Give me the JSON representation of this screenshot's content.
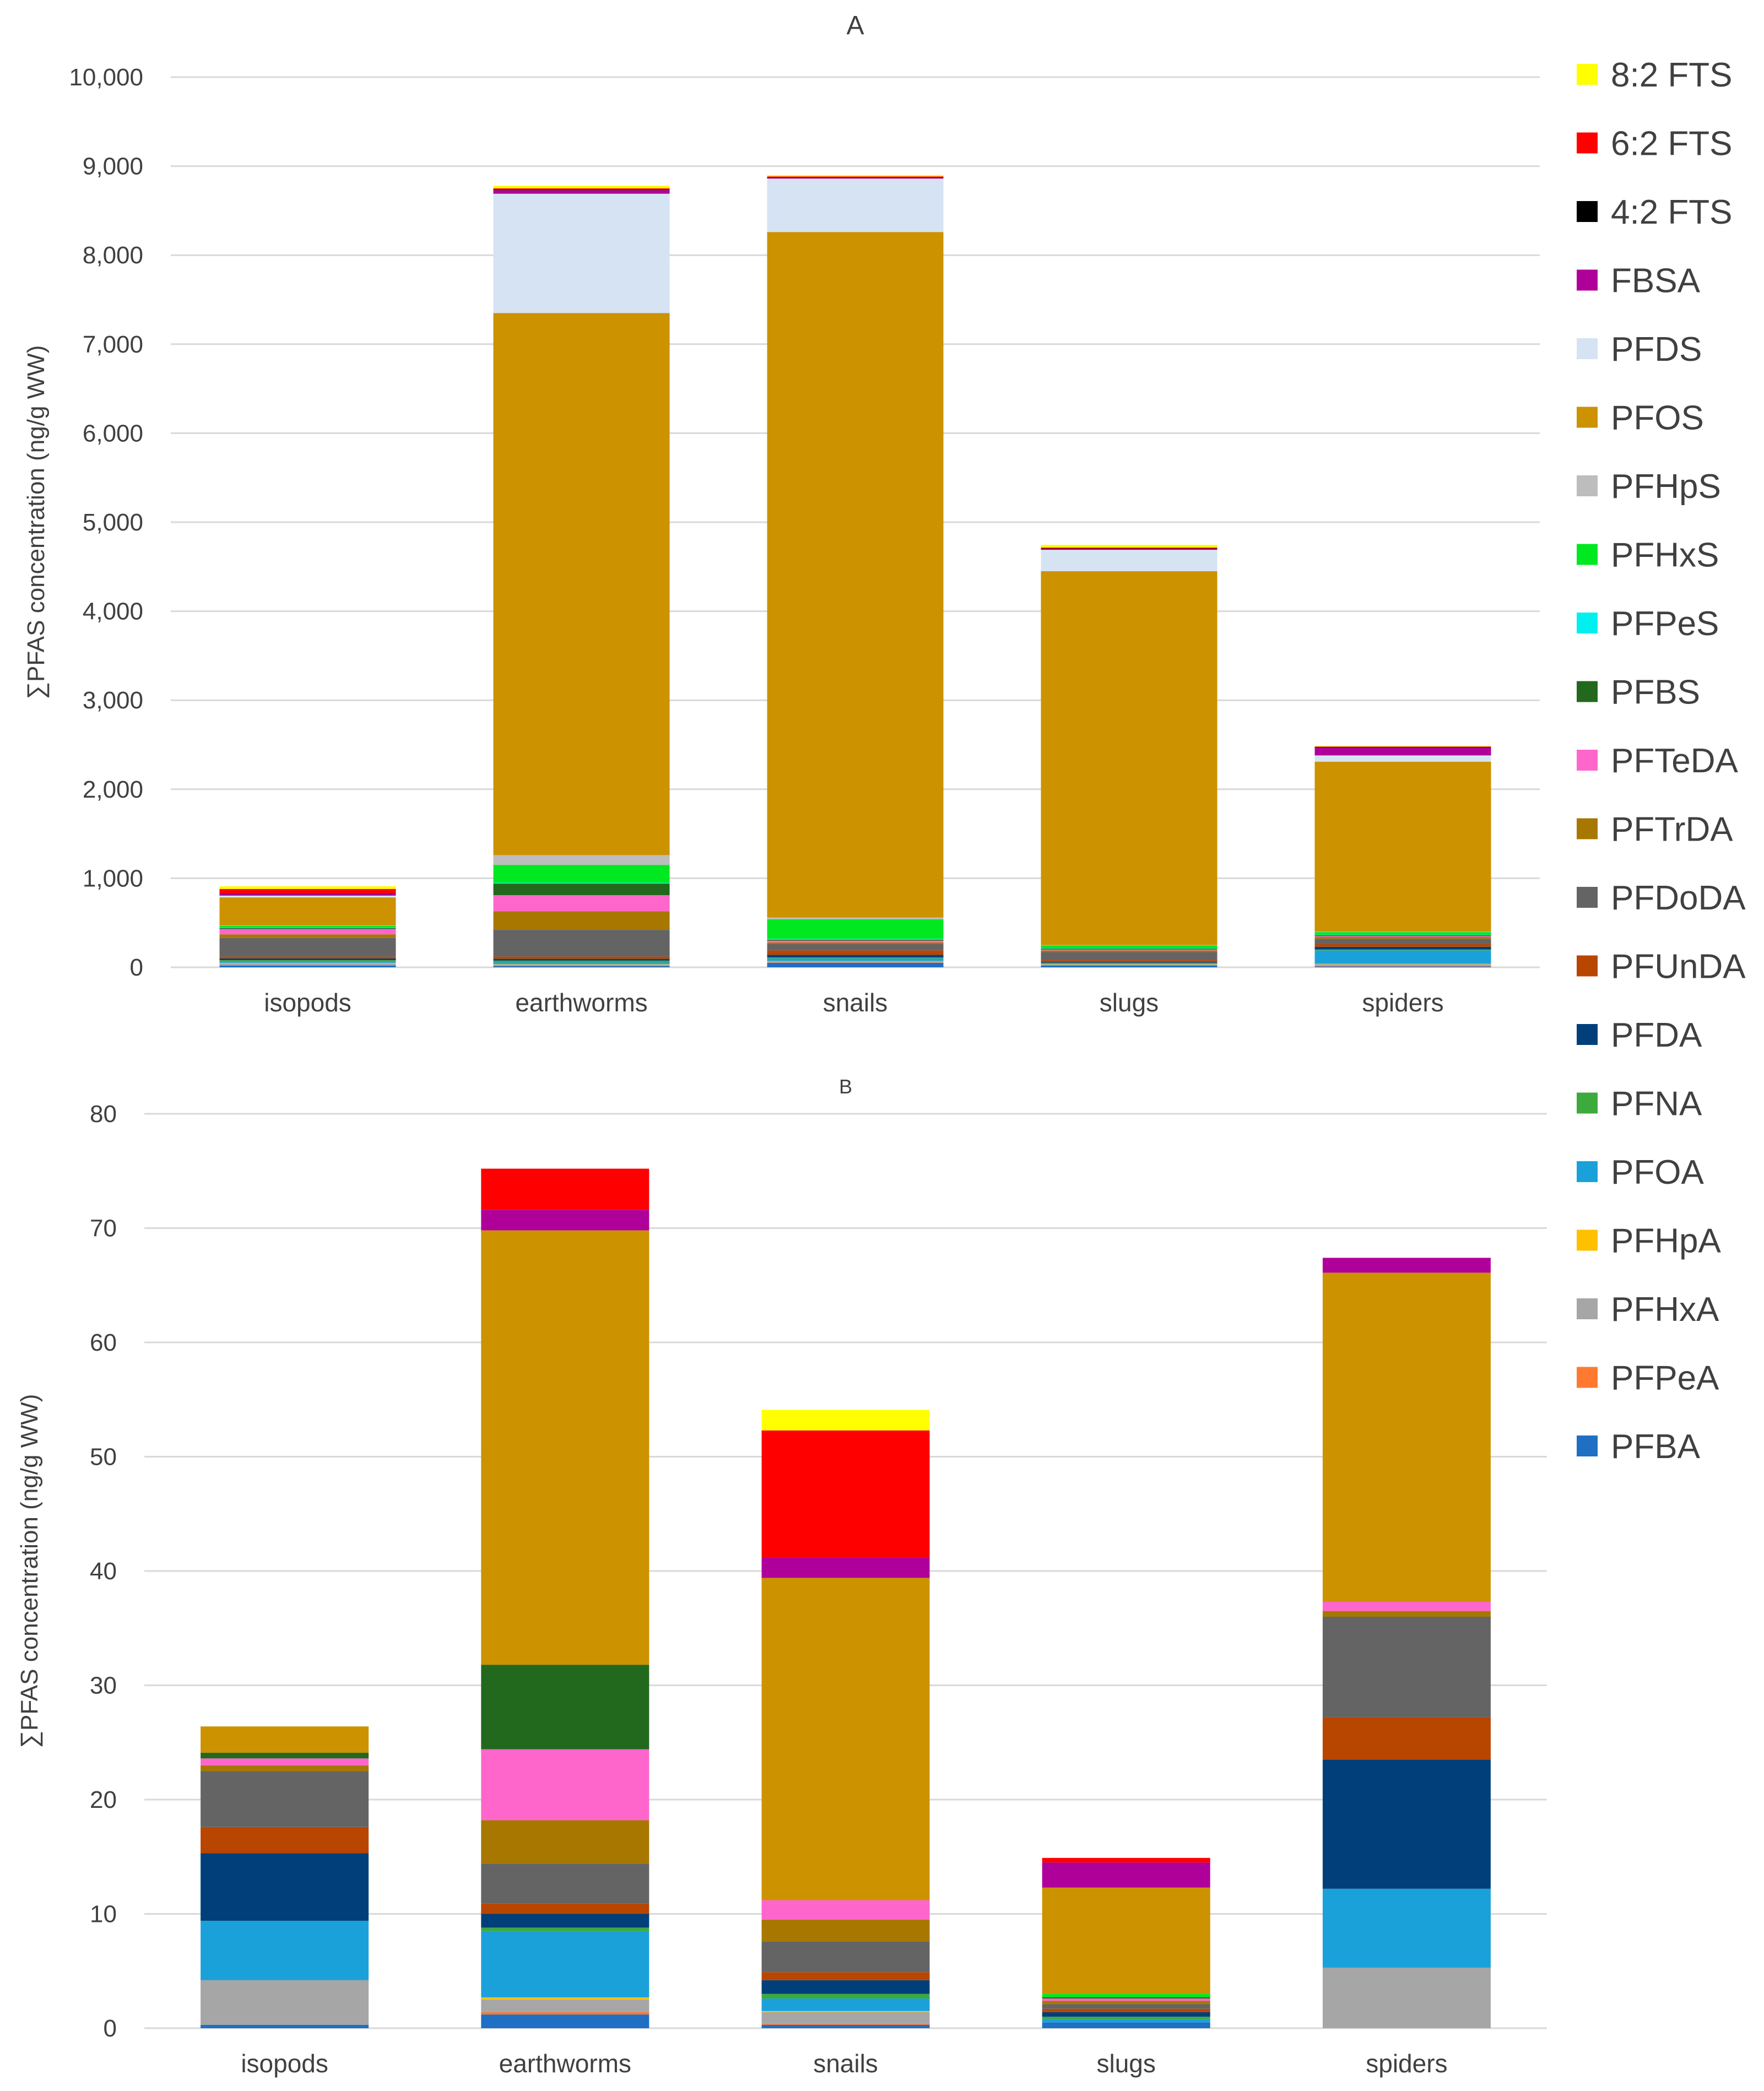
{
  "legend": {
    "position": "right",
    "items": [
      {
        "label": "8:2 FTS",
        "color": "#FFFF00"
      },
      {
        "label": "6:2 FTS",
        "color": "#FF0000"
      },
      {
        "label": "4:2 FTS",
        "color": "#000000"
      },
      {
        "label": "FBSA",
        "color": "#B0009A"
      },
      {
        "label": "PFDS",
        "color": "#D6E3F3"
      },
      {
        "label": "PFOS",
        "color": "#CC9200"
      },
      {
        "label": "PFHpS",
        "color": "#BDBDBD"
      },
      {
        "label": "PFHxS",
        "color": "#00E81F"
      },
      {
        "label": "PFPeS",
        "color": "#00F0F0"
      },
      {
        "label": "PFBS",
        "color": "#22691E"
      },
      {
        "label": "PFTeDA",
        "color": "#FF66CC"
      },
      {
        "label": "PFTrDA",
        "color": "#A77700"
      },
      {
        "label": "PFDoDA",
        "color": "#646464"
      },
      {
        "label": "PFUnDA",
        "color": "#B84500"
      },
      {
        "label": "PFDA",
        "color": "#003F7A"
      },
      {
        "label": "PFNA",
        "color": "#3DAA3D"
      },
      {
        "label": "PFOA",
        "color": "#1BA1DA"
      },
      {
        "label": "PFHpA",
        "color": "#FFC000"
      },
      {
        "label": "PFHxA",
        "color": "#A6A6A6"
      },
      {
        "label": "PFPeA",
        "color": "#FF7A30"
      },
      {
        "label": "PFBA",
        "color": "#1F6FC4"
      }
    ]
  },
  "chart_data": [
    {
      "type": "bar",
      "stacked": true,
      "title": "A",
      "xlabel": "",
      "ylabel": "∑PFAS concentration (ng/g WW)",
      "ylim": [
        0,
        10000
      ],
      "yticks": [
        0,
        1000,
        2000,
        3000,
        4000,
        5000,
        6000,
        7000,
        8000,
        9000,
        10000
      ],
      "ytick_labels": [
        "0",
        "1,000",
        "2,000",
        "3,000",
        "4,000",
        "5,000",
        "6,000",
        "7,000",
        "8,000",
        "9,000",
        "10,000"
      ],
      "grid": true,
      "categories": [
        "isopods",
        "earthworms",
        "snails",
        "slugs",
        "spiders"
      ],
      "series": [
        {
          "name": "PFBA",
          "values": [
            20,
            15,
            50,
            20,
            10
          ]
        },
        {
          "name": "PFPeA",
          "values": [
            5,
            5,
            5,
            5,
            5
          ]
        },
        {
          "name": "PFHxA",
          "values": [
            20,
            10,
            10,
            5,
            20
          ]
        },
        {
          "name": "PFHpA",
          "values": [
            5,
            5,
            5,
            5,
            5
          ]
        },
        {
          "name": "PFOA",
          "values": [
            20,
            20,
            30,
            10,
            150
          ]
        },
        {
          "name": "PFNA",
          "values": [
            10,
            20,
            10,
            5,
            10
          ]
        },
        {
          "name": "PFDA",
          "values": [
            20,
            20,
            30,
            10,
            30
          ]
        },
        {
          "name": "PFUnDA",
          "values": [
            20,
            25,
            50,
            20,
            30
          ]
        },
        {
          "name": "PFDoDA",
          "values": [
            210,
            300,
            70,
            90,
            60
          ]
        },
        {
          "name": "PFTrDA",
          "values": [
            40,
            210,
            20,
            20,
            20
          ]
        },
        {
          "name": "PFTeDA",
          "values": [
            60,
            180,
            20,
            10,
            10
          ]
        },
        {
          "name": "PFBS",
          "values": [
            10,
            130,
            10,
            10,
            10
          ]
        },
        {
          "name": "PFPeS",
          "values": [
            5,
            10,
            10,
            5,
            5
          ]
        },
        {
          "name": "PFHxS",
          "values": [
            20,
            200,
            220,
            30,
            30
          ]
        },
        {
          "name": "PFHpS",
          "values": [
            5,
            110,
            20,
            5,
            5
          ]
        },
        {
          "name": "PFOS",
          "values": [
            315,
            6090,
            7700,
            4200,
            1910
          ]
        },
        {
          "name": "PFDS",
          "values": [
            20,
            1340,
            600,
            240,
            70
          ]
        },
        {
          "name": "FBSA",
          "values": [
            20,
            40,
            10,
            10,
            90
          ]
        },
        {
          "name": "4:2 FTS",
          "values": [
            5,
            5,
            5,
            5,
            5
          ]
        },
        {
          "name": "6:2 FTS",
          "values": [
            50,
            15,
            10,
            10,
            5
          ]
        },
        {
          "name": "8:2 FTS",
          "values": [
            30,
            30,
            15,
            30,
            5
          ]
        }
      ]
    },
    {
      "type": "bar",
      "stacked": true,
      "title": "B",
      "xlabel": "",
      "ylabel": "∑PFAS concentration (ng/g WW)",
      "ylim": [
        0,
        80
      ],
      "yticks": [
        0,
        10,
        20,
        30,
        40,
        50,
        60,
        70,
        80
      ],
      "ytick_labels": [
        "0",
        "10",
        "20",
        "30",
        "40",
        "50",
        "60",
        "70",
        "80"
      ],
      "grid": true,
      "categories": [
        "isopods",
        "earthworms",
        "snails",
        "slugs",
        "spiders"
      ],
      "series": [
        {
          "name": "PFBA",
          "values": [
            0.3,
            1.2,
            0.3,
            0.5,
            0
          ]
        },
        {
          "name": "PFPeA",
          "values": [
            0,
            0.2,
            0.1,
            0,
            0
          ]
        },
        {
          "name": "PFHxA",
          "values": [
            3.9,
            1.1,
            1.0,
            0,
            5.3
          ]
        },
        {
          "name": "PFHpA",
          "values": [
            0,
            0.2,
            0.1,
            0,
            0
          ]
        },
        {
          "name": "PFOA",
          "values": [
            5.2,
            5.8,
            1.1,
            0.3,
            6.9
          ]
        },
        {
          "name": "PFNA",
          "values": [
            0,
            0.3,
            0.4,
            0.2,
            0
          ]
        },
        {
          "name": "PFDA",
          "values": [
            5.9,
            1.2,
            1.2,
            0.4,
            11.3
          ]
        },
        {
          "name": "PFUnDA",
          "values": [
            2.3,
            0.9,
            0.7,
            0.3,
            3.7
          ]
        },
        {
          "name": "PFDoDA",
          "values": [
            4.9,
            3.5,
            2.7,
            0.4,
            8.8
          ]
        },
        {
          "name": "PFTrDA",
          "values": [
            0.5,
            3.8,
            1.9,
            0.3,
            0.5
          ]
        },
        {
          "name": "PFTeDA",
          "values": [
            0.6,
            6.2,
            1.7,
            0.2,
            0.8
          ]
        },
        {
          "name": "PFBS",
          "values": [
            0.5,
            7.4,
            0,
            0.1,
            0
          ]
        },
        {
          "name": "PFPeS",
          "values": [
            0,
            0,
            0,
            0,
            0
          ]
        },
        {
          "name": "PFHxS",
          "values": [
            0,
            0,
            0,
            0.3,
            0
          ]
        },
        {
          "name": "PFHpS",
          "values": [
            0,
            0,
            0,
            0,
            0
          ]
        },
        {
          "name": "PFOS",
          "values": [
            2.3,
            38.0,
            28.2,
            9.3,
            28.8
          ]
        },
        {
          "name": "PFDS",
          "values": [
            0,
            0,
            0,
            0,
            0
          ]
        },
        {
          "name": "FBSA",
          "values": [
            0,
            1.8,
            1.8,
            2.2,
            1.3
          ]
        },
        {
          "name": "4:2 FTS",
          "values": [
            0,
            0,
            0,
            0,
            0
          ]
        },
        {
          "name": "6:2 FTS",
          "values": [
            0,
            3.6,
            11.1,
            0.4,
            0
          ]
        },
        {
          "name": "8:2 FTS",
          "values": [
            0,
            0,
            1.8,
            0,
            0
          ]
        }
      ]
    }
  ]
}
